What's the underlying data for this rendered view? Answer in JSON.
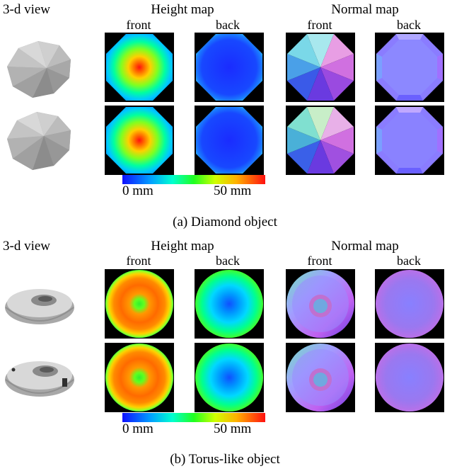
{
  "panels": [
    {
      "id": "diamond",
      "header_3d": "3-d view",
      "header_height": "Height map",
      "header_normal": "Normal map",
      "front": "front",
      "back": "back",
      "scale_min": "0 mm",
      "scale_max": "50 mm",
      "caption": "(a) Diamond object"
    },
    {
      "id": "torus",
      "header_3d": "3-d view",
      "header_height": "Height map",
      "header_normal": "Normal map",
      "front": "front",
      "back": "back",
      "scale_min": "0 mm",
      "scale_max": "50 mm",
      "caption": "(b) Torus-like object"
    }
  ],
  "colors": {
    "jet_blue": "#1010ff",
    "jet_red": "#ff1010",
    "background": "#ffffff",
    "tile_bg": "#000000"
  }
}
